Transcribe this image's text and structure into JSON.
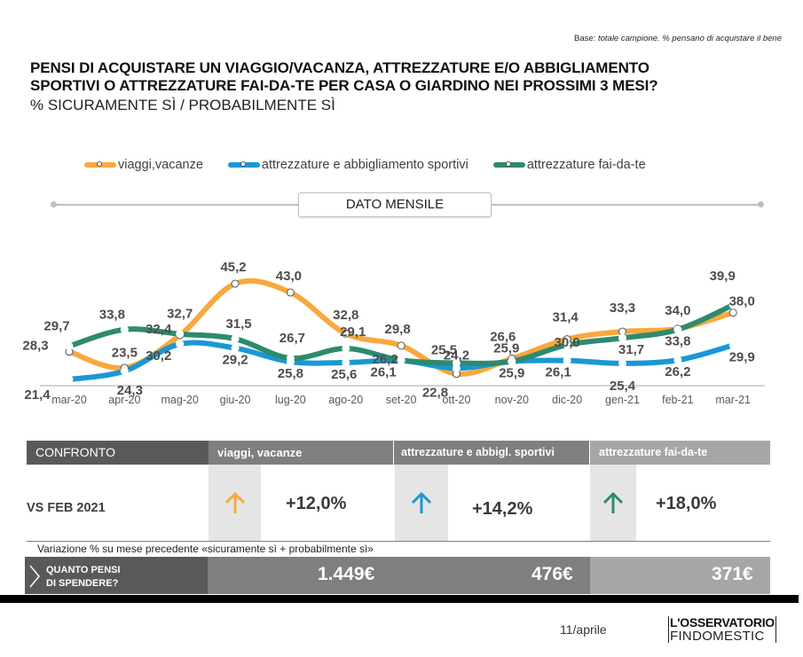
{
  "header": {
    "base_prefix": "Base:",
    "base_note": "totale campione. % pensano di acquistare il bene",
    "title_line1": "PENSI DI ACQUISTARE UN VIAGGIO/VACANZA, ATTREZZATURE E/O ABBIGLIAMENTO",
    "title_line2": "SPORTIVI O ATTREZZATURE FAI-DA-TE PER CASA O GIARDINO NEI PROSSIMI 3 MESI?",
    "subtitle": "% SICURAMENTE SÌ / PROBABILMENTE SÌ"
  },
  "period_label": "DATO MENSILE",
  "chart_data": {
    "type": "line",
    "title": "PENSI DI ACQUISTARE UN VIAGGIO/VACANZA, ATTREZZATURE E/O ABBIGLIAMENTO SPORTIVI O ATTREZZATURE FAI-DA-TE PER CASA O GIARDINO NEI PROSSIMI 3 MESI?",
    "subtitle": "% SICURAMENTE SÌ / PROBABILMENTE SÌ",
    "xlabel": "",
    "ylabel": "",
    "categories": [
      "mar-20",
      "apr-20",
      "mag-20",
      "giu-20",
      "lug-20",
      "ago-20",
      "set-20",
      "ott-20",
      "nov-20",
      "dic-20",
      "gen-21",
      "feb-21",
      "mar-21"
    ],
    "legend_position": "top",
    "grid": false,
    "series": [
      {
        "name": "viaggi,vacanze",
        "color": "#f9a83c",
        "values": [
          28.3,
          24.3,
          32.4,
          45.2,
          43.0,
          32.8,
          29.8,
          22.8,
          26.6,
          31.4,
          33.3,
          34.0,
          38.0
        ]
      },
      {
        "name": "attrezzature e abbigliamento sportivi",
        "color": "#1a97d5",
        "values": [
          21.4,
          23.5,
          30.2,
          29.2,
          25.8,
          25.6,
          26.1,
          24.2,
          25.9,
          26.1,
          25.4,
          26.2,
          29.9
        ]
      },
      {
        "name": "attrezzature fai-da-te",
        "color": "#2e8a6e",
        "values": [
          29.7,
          33.8,
          32.7,
          31.5,
          26.7,
          29.1,
          26.2,
          25.5,
          25.9,
          30.0,
          31.7,
          33.8,
          39.9
        ]
      }
    ]
  },
  "comparison": {
    "header_label": "CONFRONTO",
    "row_label": "VS FEB 2021",
    "columns": [
      {
        "label": "viaggi, vacanze",
        "change": "+12,0%",
        "direction": "up",
        "icon": "arrow-up-icon",
        "color": "#f9a83c"
      },
      {
        "label": "attrezzature e abbigl. sportivi",
        "change": "+14,2%",
        "direction": "up",
        "icon": "arrow-up-icon",
        "color": "#1a97d5"
      },
      {
        "label": "attrezzature fai-da-te",
        "change": "+18,0%",
        "direction": "up",
        "icon": "arrow-up-icon",
        "color": "#2e8a6e"
      }
    ],
    "note": "Variazione % su mese precedente «sicuramente sì + probabilmente sì»"
  },
  "spending": {
    "label_line1": "QUANTO PENSI",
    "label_line2": "DI SPENDERE?",
    "values": [
      "1.449€",
      "476€",
      "371€"
    ]
  },
  "footer": {
    "page": "11/aprile",
    "logo_top": "L'OSSERVATORIO",
    "logo_bottom": "FINDOMESTIC"
  }
}
